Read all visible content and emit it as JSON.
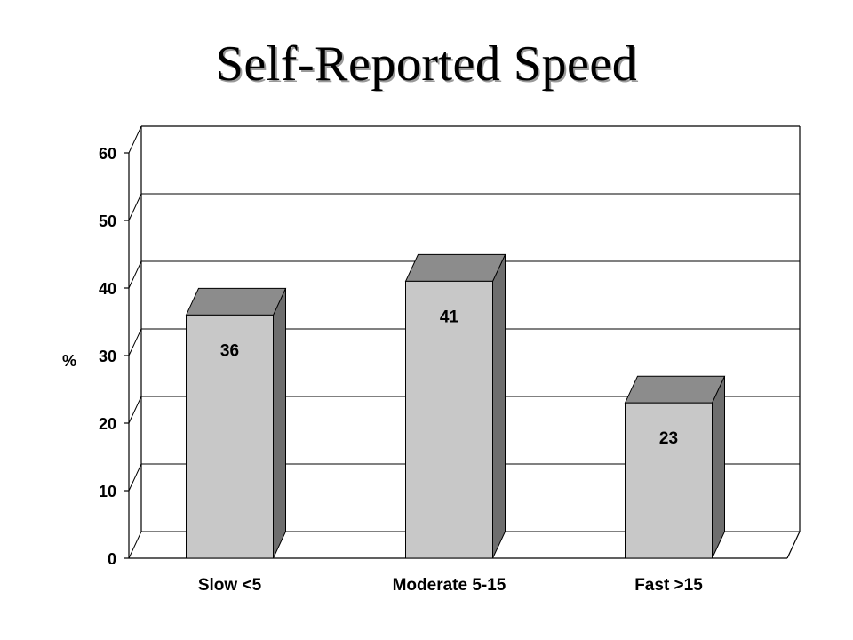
{
  "chart_data": {
    "type": "bar",
    "title": "Self-Reported Speed",
    "xlabel": "",
    "ylabel": "%",
    "categories": [
      "Slow <5",
      "Moderate 5-15",
      "Fast >15"
    ],
    "values": [
      36,
      41,
      23
    ],
    "data_labels": [
      "36",
      "41",
      "23"
    ],
    "ylim": [
      0,
      60
    ],
    "yticks": [
      0,
      10,
      20,
      30,
      40,
      50,
      60
    ],
    "grid": true,
    "style": "3d-column",
    "colors": {
      "bar_front": "#c8c8c8",
      "bar_top": "#8c8c8c",
      "bar_side": "#6e6e6e",
      "grid": "#000000"
    }
  }
}
